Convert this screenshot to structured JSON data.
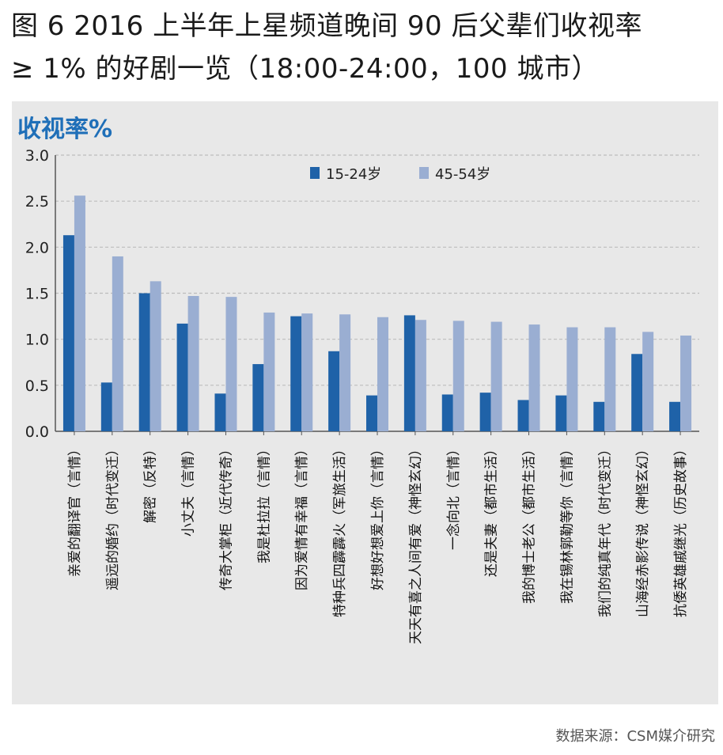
{
  "header": {
    "title_line1": "图 6  2016 上半年上星频道晚间 90 后父辈们收视率",
    "title_line2": "≥ 1% 的好剧一览（18:00-24:00，100 城市）"
  },
  "footer": {
    "source": "数据来源：CSM媒介研究"
  },
  "colors": {
    "panel_bg": "#e8e8e8",
    "grid": "#bdbdbd",
    "axis": "#555555",
    "ylabel": "#1f6fb8"
  },
  "chart_data": {
    "type": "bar",
    "title": "",
    "ylabel": "收视率%",
    "xlabel": "",
    "ylim": [
      0,
      3.0
    ],
    "yticks": [
      "0.0",
      "0.5",
      "1.0",
      "1.5",
      "2.0",
      "2.5",
      "3.0"
    ],
    "grid": true,
    "legend_position": "top-center",
    "categories": [
      "亲爱的翻译官（言情）",
      "遥远的婚约（时代变迁）",
      "解密（反特）",
      "小丈夫（言情）",
      "传奇大掌柜（近代传奇）",
      "我是杜拉拉（言情）",
      "因为爱情有幸福（言情）",
      "特种兵四霹霹火（军旅生活）",
      "好想好想爱上你（言情）",
      "天天有喜之人间有爱（神怪玄幻）",
      "一念向北（言情）",
      "还是夫妻（都市生活）",
      "我的博士老公（都市生活）",
      "我在锡林郭勒等你（言情）",
      "我们的纯真年代（时代变迁）",
      "山海经赤影传说（神怪玄幻）",
      "抗倭英雄戚继光（历史故事）"
    ],
    "series": [
      {
        "name": "15-24岁",
        "color": "#1f62a8",
        "values": [
          2.13,
          0.53,
          1.5,
          1.17,
          0.41,
          0.73,
          1.25,
          0.87,
          0.39,
          1.26,
          0.4,
          0.42,
          0.34,
          0.39,
          0.32,
          0.84,
          0.32
        ]
      },
      {
        "name": "45-54岁",
        "color": "#9aaed2",
        "values": [
          2.56,
          1.9,
          1.63,
          1.47,
          1.46,
          1.29,
          1.28,
          1.27,
          1.24,
          1.21,
          1.2,
          1.19,
          1.16,
          1.13,
          1.13,
          1.08,
          1.04
        ]
      }
    ]
  }
}
